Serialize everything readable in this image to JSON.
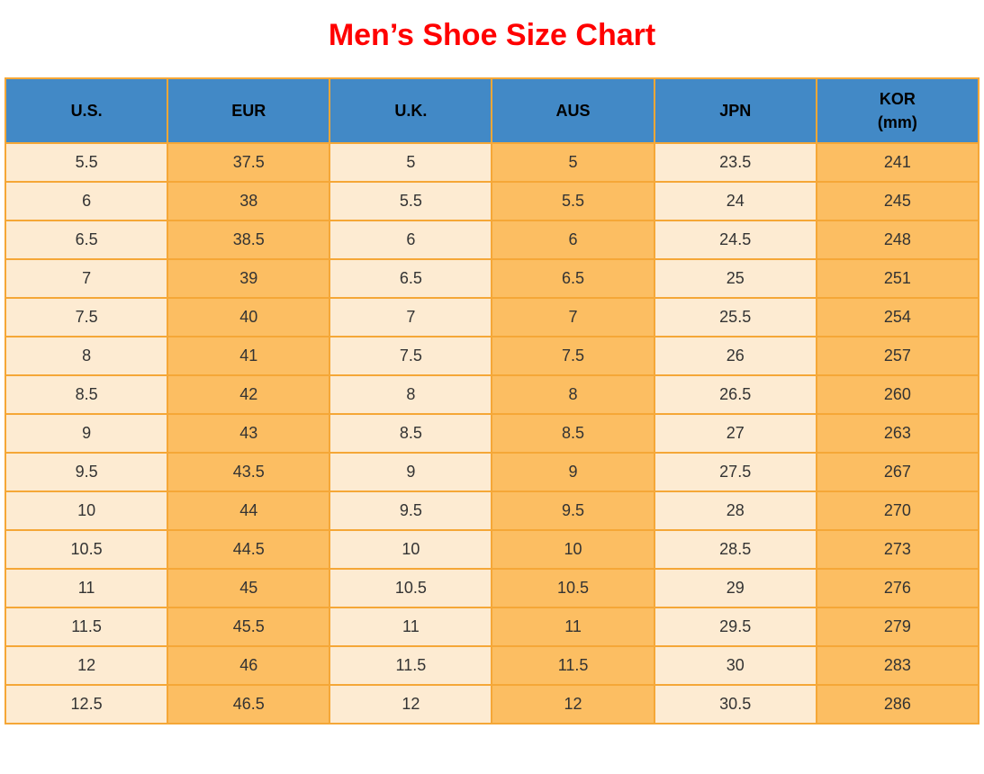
{
  "page_title": "Men’s Shoe Size Chart",
  "colors": {
    "title": "#FF0000",
    "header_bg": "#4289C6",
    "header_text": "#000000",
    "col_light": "#FDEBD2",
    "col_orange": "#FCBE62",
    "border": "#F5A737",
    "cell_text": "#333333"
  },
  "chart_data": {
    "type": "table",
    "title": "Men’s Shoe Size Chart",
    "columns": [
      "U.S.",
      "EUR",
      "U.K.",
      "AUS",
      "JPN",
      "KOR (mm)"
    ],
    "rows": [
      [
        "5.5",
        "37.5",
        "5",
        "5",
        "23.5",
        "241"
      ],
      [
        "6",
        "38",
        "5.5",
        "5.5",
        "24",
        "245"
      ],
      [
        "6.5",
        "38.5",
        "6",
        "6",
        "24.5",
        "248"
      ],
      [
        "7",
        "39",
        "6.5",
        "6.5",
        "25",
        "251"
      ],
      [
        "7.5",
        "40",
        "7",
        "7",
        "25.5",
        "254"
      ],
      [
        "8",
        "41",
        "7.5",
        "7.5",
        "26",
        "257"
      ],
      [
        "8.5",
        "42",
        "8",
        "8",
        "26.5",
        "260"
      ],
      [
        "9",
        "43",
        "8.5",
        "8.5",
        "27",
        "263"
      ],
      [
        "9.5",
        "43.5",
        "9",
        "9",
        "27.5",
        "267"
      ],
      [
        "10",
        "44",
        "9.5",
        "9.5",
        "28",
        "270"
      ],
      [
        "10.5",
        "44.5",
        "10",
        "10",
        "28.5",
        "273"
      ],
      [
        "11",
        "45",
        "10.5",
        "10.5",
        "29",
        "276"
      ],
      [
        "11.5",
        "45.5",
        "11",
        "11",
        "29.5",
        "279"
      ],
      [
        "12",
        "46",
        "11.5",
        "11.5",
        "30",
        "283"
      ],
      [
        "12.5",
        "46.5",
        "12",
        "12",
        "30.5",
        "286"
      ]
    ]
  },
  "table": {
    "header_cells": [
      {
        "key": "us",
        "lines": [
          "U.S."
        ]
      },
      {
        "key": "eur",
        "lines": [
          "EUR"
        ]
      },
      {
        "key": "uk",
        "lines": [
          "U.K."
        ]
      },
      {
        "key": "aus",
        "lines": [
          "AUS"
        ]
      },
      {
        "key": "jpn",
        "lines": [
          "JPN"
        ]
      },
      {
        "key": "kor",
        "lines": [
          "KOR",
          "(mm)"
        ]
      }
    ]
  }
}
